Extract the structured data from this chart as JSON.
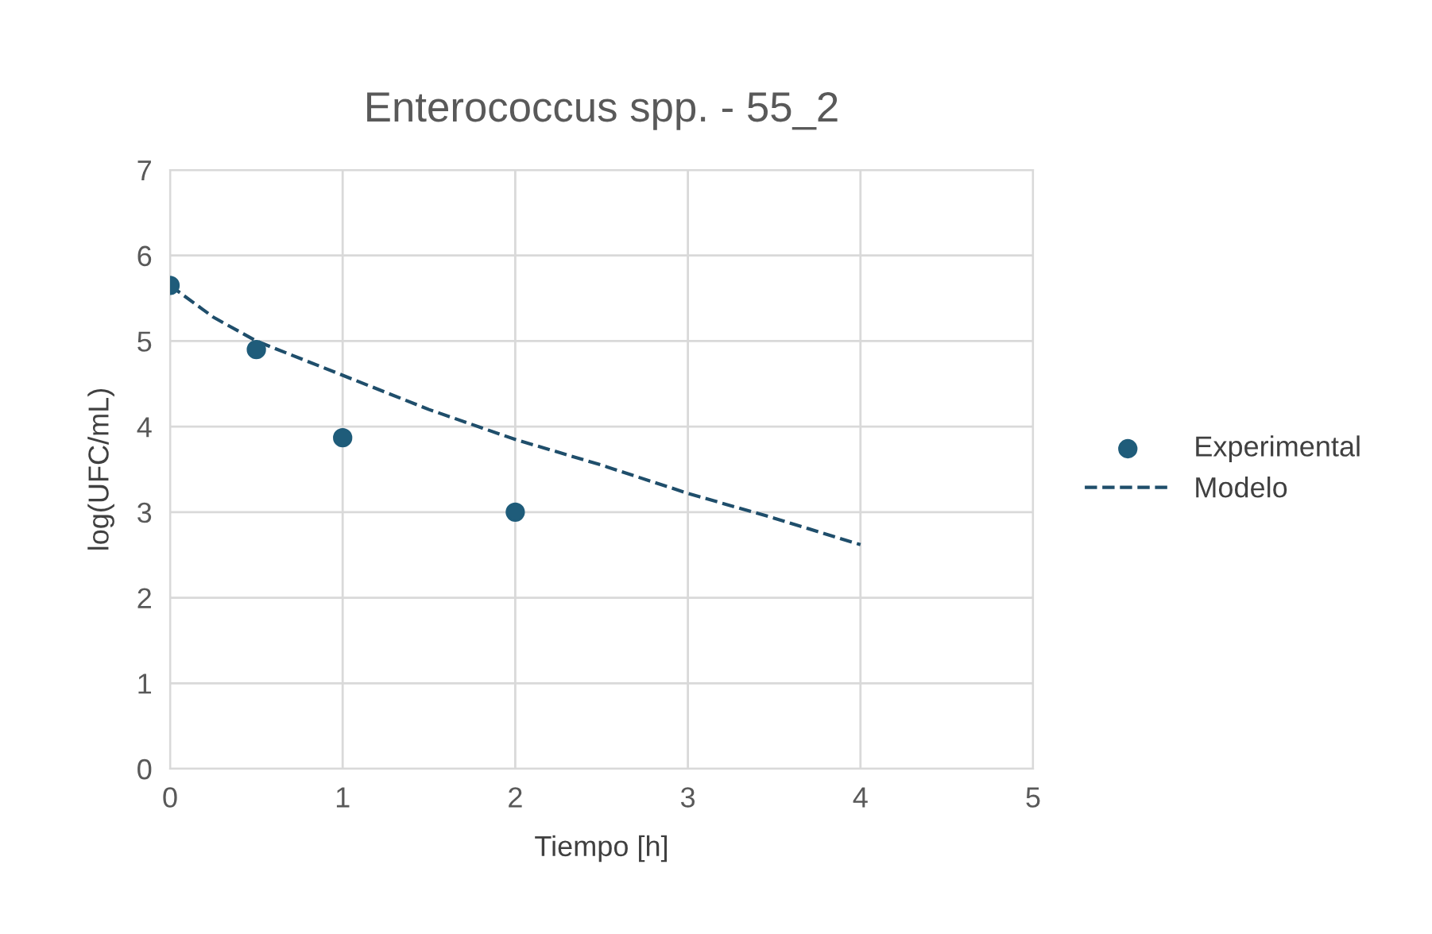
{
  "chart_data": {
    "type": "scatter",
    "title": "Enterococcus spp. - 55_2",
    "xlabel": "Tiempo [h]",
    "ylabel": "log(UFC/mL)",
    "xlim": [
      0,
      5
    ],
    "xticks": [
      0,
      1,
      2,
      3,
      4,
      5
    ],
    "ylim": [
      0,
      7
    ],
    "yticks": [
      0,
      1,
      2,
      3,
      4,
      5,
      6,
      7
    ],
    "grid": true,
    "legend": "right",
    "series": [
      {
        "name": "Experimental",
        "color": "#1f5c7a",
        "marker": "circle",
        "x": [
          0,
          0.5,
          1,
          2
        ],
        "values": [
          5.65,
          4.9,
          3.87,
          3.0
        ]
      },
      {
        "name": "Modelo",
        "type": "line",
        "color": "#1f4e6b",
        "marker": "none",
        "line_style": "dashed",
        "x": [
          0,
          0.25,
          0.5,
          1,
          1.5,
          2,
          2.5,
          3,
          3.5,
          4
        ],
        "values": [
          5.65,
          5.28,
          5.0,
          4.6,
          4.2,
          3.85,
          3.55,
          3.22,
          2.93,
          2.62
        ]
      }
    ]
  }
}
